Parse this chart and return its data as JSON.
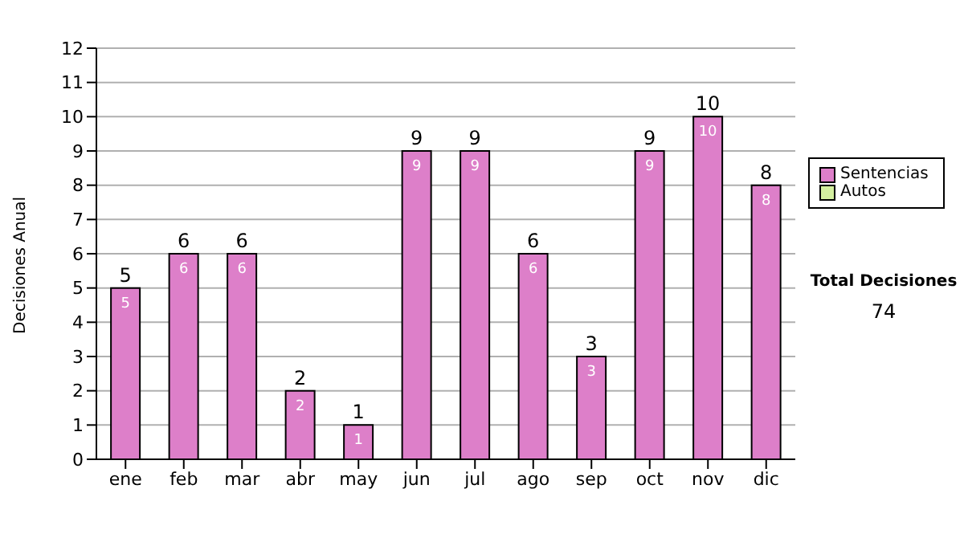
{
  "chart_data": {
    "type": "bar",
    "stacked": true,
    "ylabel": "Decisiones Anual",
    "categories": [
      "ene",
      "feb",
      "mar",
      "abr",
      "may",
      "jun",
      "jul",
      "ago",
      "sep",
      "oct",
      "nov",
      "dic"
    ],
    "series": [
      {
        "name": "Sentencias",
        "color": "#dd7fc9",
        "values": [
          5,
          6,
          6,
          2,
          1,
          9,
          9,
          6,
          3,
          9,
          10,
          8
        ],
        "value_labels": [
          "5",
          "6",
          "6",
          "2",
          "1",
          "9",
          "9",
          "6",
          "3",
          "9",
          "10",
          "8"
        ]
      },
      {
        "name": "Autos",
        "color": "#d4f0a0",
        "values": [
          0,
          0,
          0,
          0,
          0,
          0,
          0,
          0,
          0,
          0,
          0,
          0
        ]
      }
    ],
    "totals": [
      "5",
      "6",
      "6",
      "2",
      "1",
      "9",
      "9",
      "6",
      "3",
      "9",
      "10",
      "8"
    ],
    "ylim": [
      0,
      12
    ],
    "yticks": [
      0,
      1,
      2,
      3,
      4,
      5,
      6,
      7,
      8,
      9,
      10,
      11,
      12
    ],
    "grid": "y",
    "legend": "right",
    "annotations": [
      "Total Decisiones",
      "74"
    ]
  }
}
